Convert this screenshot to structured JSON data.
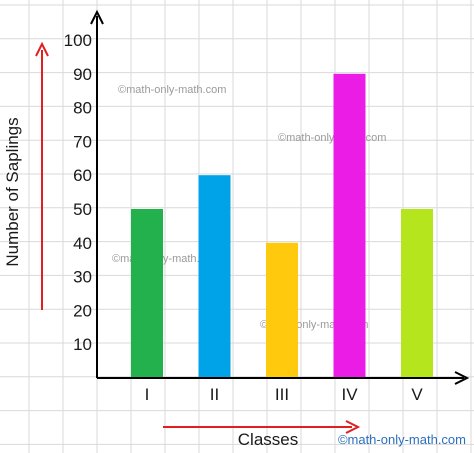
{
  "chart_data": {
    "type": "bar",
    "categories": [
      "I",
      "II",
      "III",
      "IV",
      "V"
    ],
    "values": [
      50,
      60,
      40,
      90,
      50
    ],
    "colors": [
      "#22b14c",
      "#00a2e8",
      "#ffc90e",
      "#ea1ce6",
      "#b5e61d"
    ],
    "ylabel": "Number of Saplings",
    "xlabel": "Classes",
    "yticks": [
      10,
      20,
      30,
      40,
      50,
      60,
      70,
      80,
      90,
      100
    ],
    "ylim": [
      0,
      100
    ],
    "grid": true,
    "grid_color": "#d9d9d9",
    "arrow_color": "#e02020"
  },
  "watermarks": [
    "©math-only-math.com",
    "©math-only-math.com",
    "©math-only-math.com",
    "©math-only-math.com"
  ],
  "credit": "©math-only-math.com"
}
